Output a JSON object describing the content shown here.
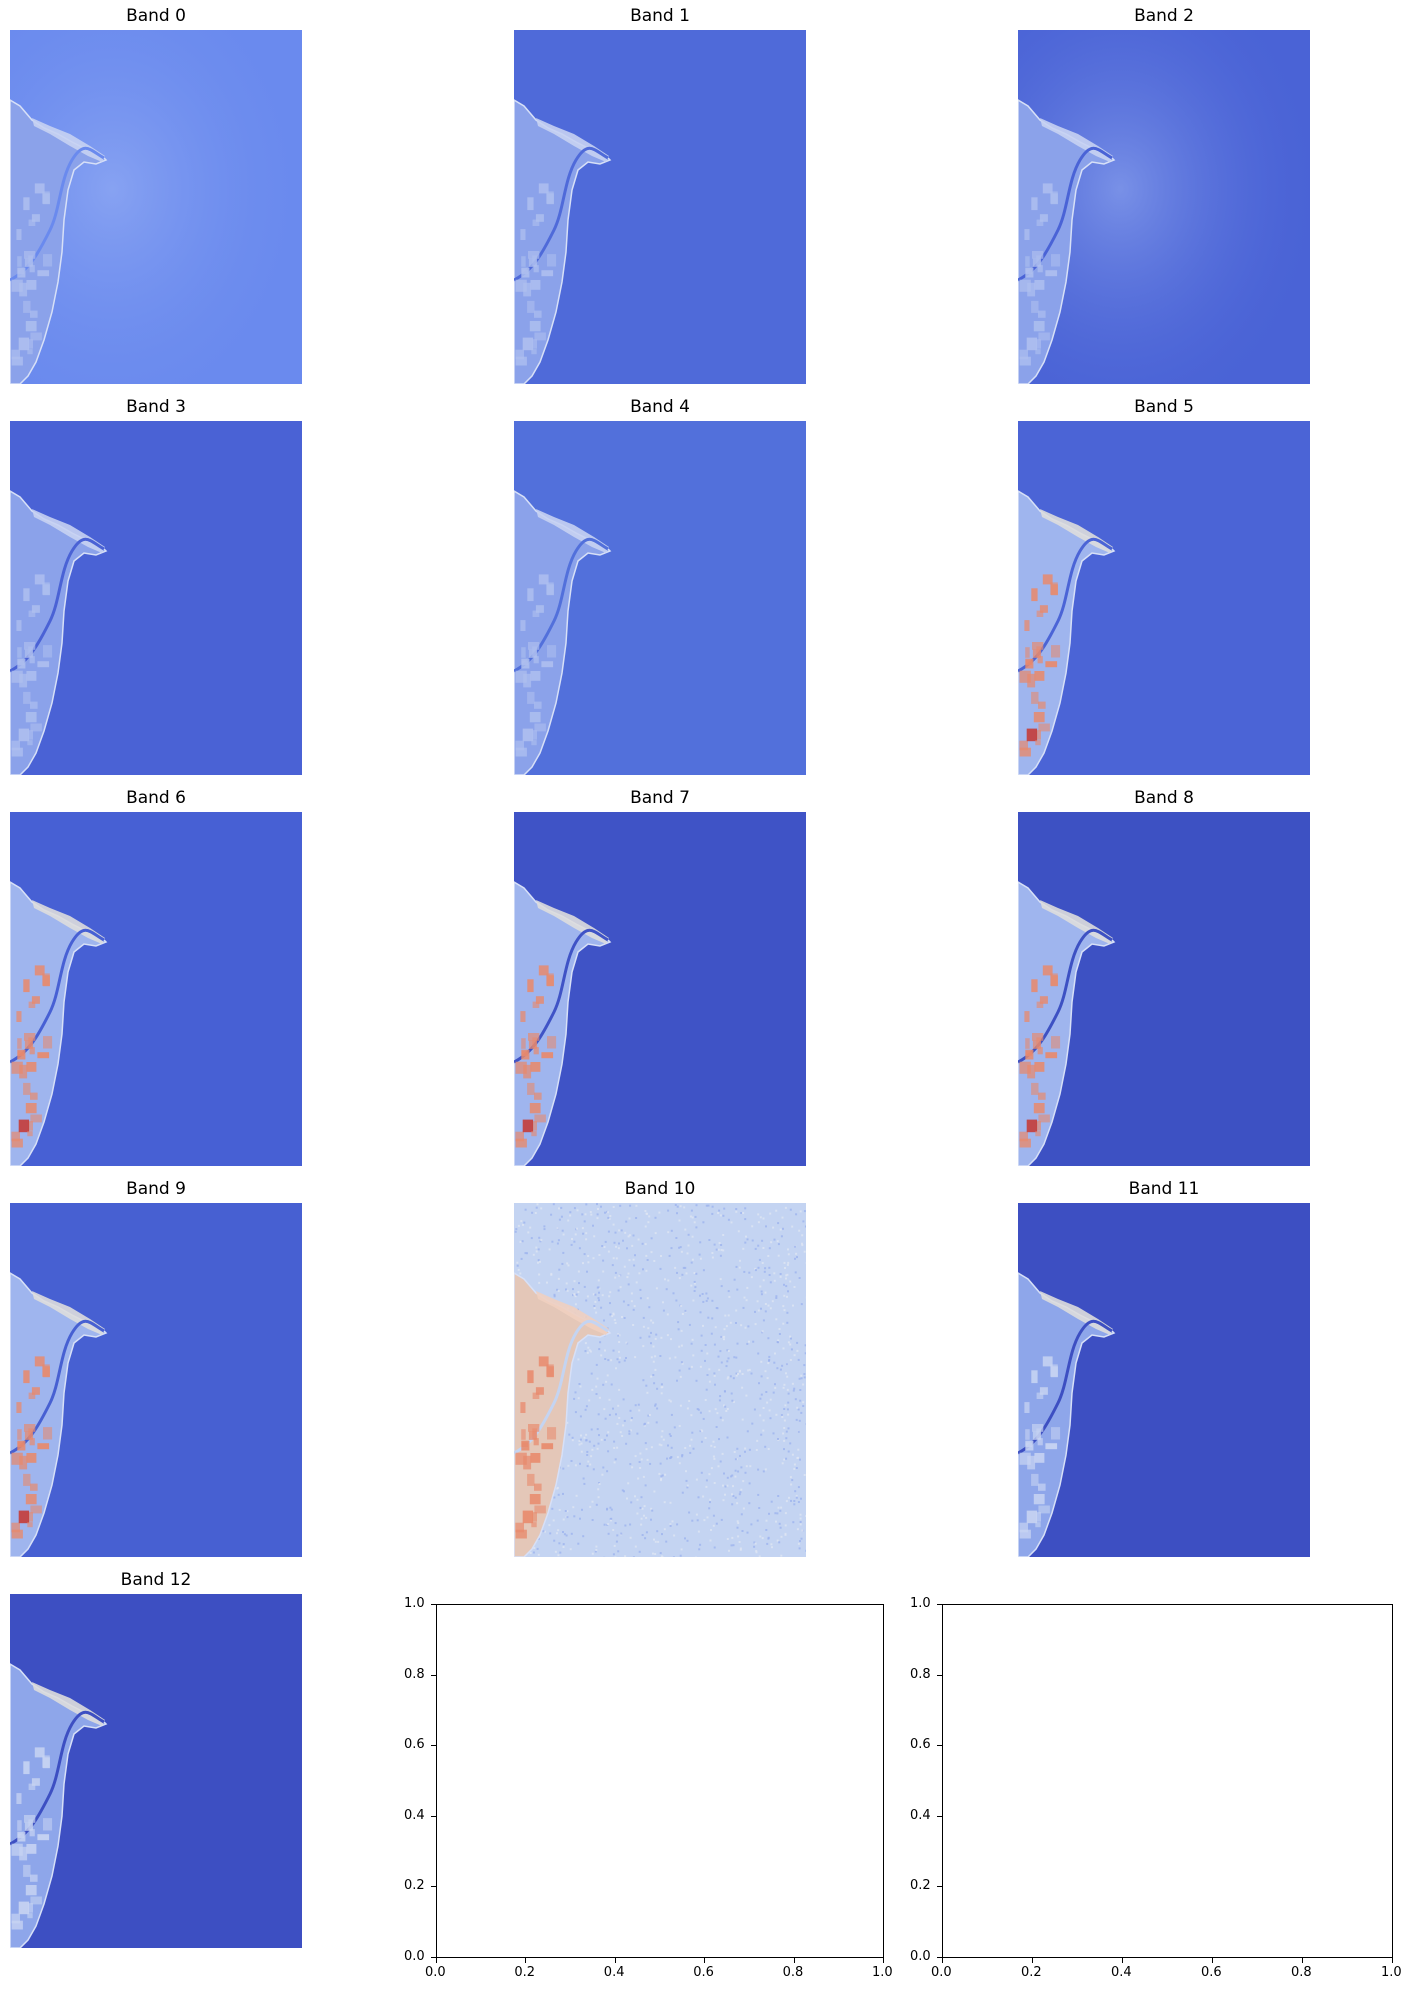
{
  "chart_data": {
    "type": "image-grid",
    "grid": {
      "rows": 5,
      "cols": 3
    },
    "colormap": "coolwarm",
    "colors": {
      "low": "#3b4cc0",
      "mid": "#dddddd",
      "high": "#b40426",
      "land_warm": "#e8896c",
      "land_hot": "#c43c39"
    },
    "panels": [
      {
        "title": "Band 0",
        "tone": "#6a8aee",
        "style": "haze"
      },
      {
        "title": "Band 1",
        "tone": "#4f6ad9",
        "style": "faint"
      },
      {
        "title": "Band 2",
        "tone": "#4a63d6",
        "style": "haze"
      },
      {
        "title": "Band 3",
        "tone": "#4a62d5",
        "style": "faint"
      },
      {
        "title": "Band 4",
        "tone": "#5270db",
        "style": "faint"
      },
      {
        "title": "Band 5",
        "tone": "#4b64d6",
        "style": "land"
      },
      {
        "title": "Band 6",
        "tone": "#4760d4",
        "style": "land"
      },
      {
        "title": "Band 7",
        "tone": "#3f53c6",
        "style": "land"
      },
      {
        "title": "Band 8",
        "tone": "#3d51c3",
        "style": "land"
      },
      {
        "title": "Band 9",
        "tone": "#4760d2",
        "style": "land"
      },
      {
        "title": "Band 10",
        "tone": "#c4d4f2",
        "style": "noise"
      },
      {
        "title": "Band 11",
        "tone": "#3d4fc2",
        "style": "cool"
      },
      {
        "title": "Band 12",
        "tone": "#3d4fc2",
        "style": "cool"
      }
    ],
    "empty_axes": [
      {
        "xlim": [
          0.0,
          1.0
        ],
        "ylim": [
          0.0,
          1.0
        ],
        "xticks": [
          "0.0",
          "0.2",
          "0.4",
          "0.6",
          "0.8",
          "1.0"
        ],
        "yticks": [
          "0.0",
          "0.2",
          "0.4",
          "0.6",
          "0.8",
          "1.0"
        ]
      },
      {
        "xlim": [
          0.0,
          1.0
        ],
        "ylim": [
          0.0,
          1.0
        ],
        "xticks": [
          "0.0",
          "0.2",
          "0.4",
          "0.6",
          "0.8",
          "1.0"
        ],
        "yticks": [
          "0.0",
          "0.2",
          "0.4",
          "0.6",
          "0.8",
          "1.0"
        ]
      }
    ]
  }
}
